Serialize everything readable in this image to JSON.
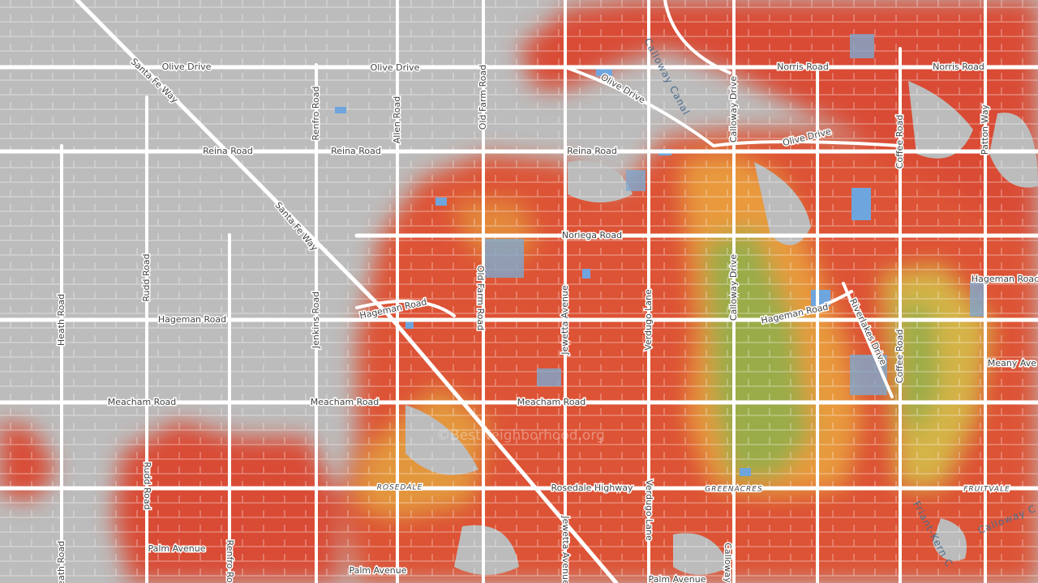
{
  "labels": [
    "Olive Drive",
    "Olive Drive",
    "Olive Drive",
    "Olive Drive",
    "Norris Road",
    "Norris Road",
    "Santa Fe Way",
    "Santa Fe Way",
    "Calloway Canal",
    "Calloway Drive",
    "Calloway Drive",
    "Calloway",
    "Renfro Road",
    "Renfro Road",
    "Allen Road",
    "Old Farm Road",
    "Old Farm Road",
    "Reina Road",
    "Reina Road",
    "Reina Road",
    "Coffee Road",
    "Coffee Road",
    "Patton Way",
    "Noriega Road",
    "Rudd Road",
    "Rudd Road",
    "Heath Road",
    "Heath Road",
    "Hageman Road",
    "Hageman Road",
    "Hageman Road",
    "Hageman Road",
    "Jenkins Road",
    "Jewetta Avenue",
    "Jewetta Avenue",
    "Verdugo Lane",
    "Verdugo Lane",
    "Riverlakes Drive",
    "Meany Ave",
    "Meacham Road",
    "Meacham Road",
    "Meacham Road",
    "ROSEDALE",
    "Rosedale Highway",
    "GREENACRES",
    "FRUITVALE",
    "Palm Avenue",
    "Palm Avenue",
    "Palm Avenue",
    "Friant-Kern C",
    "Calloway C",
    "©BestNeighborhood.org"
  ]
}
